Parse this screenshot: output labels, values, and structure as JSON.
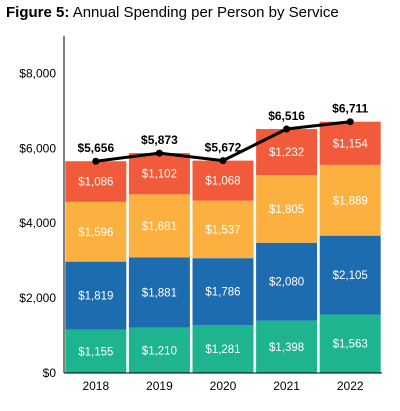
{
  "figure": {
    "label": "Figure 5:",
    "title": "Annual Spending per Person by Service"
  },
  "chart_data": {
    "type": "bar",
    "stacked": true,
    "overlay_line": true,
    "categories": [
      "2018",
      "2019",
      "2020",
      "2021",
      "2022"
    ],
    "series": [
      {
        "color": "#1db48f",
        "values": [
          1155,
          1210,
          1281,
          1398,
          1563
        ],
        "labels": [
          "$1,155",
          "$1,210",
          "$1,281",
          "$1,398",
          "$1,563"
        ]
      },
      {
        "color": "#1d6cb0",
        "values": [
          1819,
          1881,
          1786,
          2080,
          2105
        ],
        "labels": [
          "$1,819",
          "$1,881",
          "$1,786",
          "$2,080",
          "$2,105"
        ]
      },
      {
        "color": "#fbb040",
        "values": [
          1596,
          1681,
          1537,
          1805,
          1889
        ],
        "labels": [
          "$1,596",
          "$1,681",
          "$1,537",
          "$1,805",
          "$1,889"
        ]
      },
      {
        "color": "#f15a3a",
        "values": [
          1086,
          1102,
          1068,
          1232,
          1154
        ],
        "labels": [
          "$1,086",
          "$1,102",
          "$1,068",
          "$1,232",
          "$1,154"
        ]
      }
    ],
    "totals": {
      "color": "#000000",
      "values": [
        5656,
        5873,
        5672,
        6516,
        6711
      ],
      "labels": [
        "$5,656",
        "$5,873",
        "$5,672",
        "$6,516",
        "$6,711"
      ]
    },
    "yticks": [
      0,
      2000,
      4000,
      6000,
      8000
    ],
    "ytick_labels": [
      "$0",
      "$2,000",
      "$4,000",
      "$6,000",
      "$8,000"
    ],
    "ylim": [
      0,
      9000
    ],
    "xlabel": "",
    "ylabel": "",
    "grid": false,
    "legend": "none"
  }
}
